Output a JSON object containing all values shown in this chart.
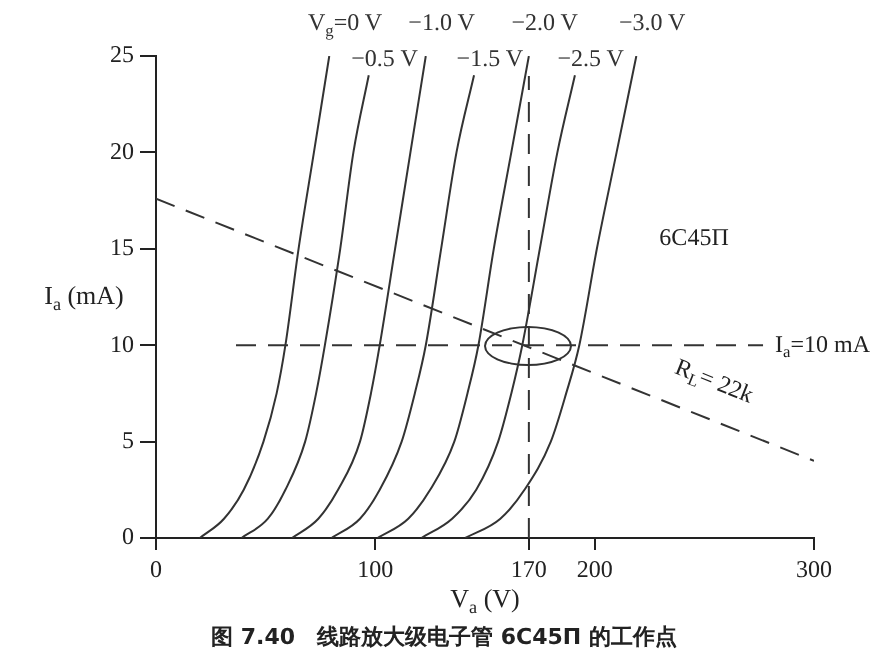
{
  "chart_data": {
    "type": "line",
    "title": "图 7.40　线路放大级电子管 6C45П 的工作点",
    "xlabel": "V$_{a}$ (V)",
    "ylabel": "I$_{a}$ (mA)",
    "xlim": [
      0,
      300
    ],
    "xticks": [
      0,
      100,
      170,
      200,
      300
    ],
    "ylim": [
      0,
      25
    ],
    "yticks": [
      0,
      5,
      10,
      15,
      20,
      25
    ],
    "grid": false,
    "legend": false,
    "marker": "none",
    "series": [
      {
        "name": "V$_{g}$=0 V",
        "color": "#333333",
        "x": [
          20,
          31,
          40,
          49,
          55,
          59,
          65,
          72,
          79
        ],
        "values": [
          0,
          1,
          2.5,
          5,
          7.5,
          10,
          15,
          20,
          25
        ]
      },
      {
        "name": "−0.5 V",
        "color": "#333333",
        "x": [
          39,
          51,
          59,
          68,
          73,
          77,
          84,
          90,
          97
        ],
        "values": [
          0,
          1,
          2.5,
          5,
          7.5,
          10,
          15,
          20,
          24
        ]
      },
      {
        "name": "−1.0 V",
        "color": "#333333",
        "x": [
          62,
          74,
          83,
          93,
          98,
          102,
          109,
          116,
          123
        ],
        "values": [
          0,
          1,
          2.5,
          5,
          7.5,
          10,
          15,
          20,
          25
        ]
      },
      {
        "name": "−1.5 V",
        "color": "#333333",
        "x": [
          80,
          93,
          102,
          112,
          118,
          123,
          130,
          137,
          145
        ],
        "values": [
          0,
          1,
          2.5,
          5,
          7.5,
          10,
          15,
          20,
          24
        ]
      },
      {
        "name": "−2.0 V",
        "color": "#333333",
        "x": [
          101,
          115,
          125,
          136,
          142,
          147,
          154,
          162,
          170
        ],
        "values": [
          0,
          1,
          2.5,
          5,
          7.5,
          10,
          15,
          20,
          25
        ]
      },
      {
        "name": "−2.5 V",
        "color": "#333333",
        "x": [
          121,
          135,
          146,
          156,
          162,
          167,
          175,
          183,
          191
        ],
        "values": [
          0,
          1,
          2.5,
          5,
          7.5,
          10,
          15,
          20,
          24
        ]
      },
      {
        "name": "−3.0 V",
        "color": "#333333",
        "x": [
          141,
          157,
          168,
          180,
          187,
          193,
          201,
          210,
          219
        ],
        "values": [
          0,
          1,
          2.5,
          5,
          7.5,
          10,
          15,
          20,
          25
        ]
      },
      {
        "color": "#333333",
        "line_style": "dashed",
        "x": [
          0,
          300
        ],
        "values": [
          17.6,
          4
        ]
      }
    ],
    "ref_lines": [
      {
        "axis": "x",
        "value": 170,
        "line_style": "dashed",
        "color": "#333333"
      },
      {
        "axis": "y",
        "value": 10,
        "label": "I$_{a}$=10 mA",
        "line_style": "dashed",
        "color": "#333333"
      }
    ],
    "annotations": [
      "6C45П",
      "R$_{L}$= 22k"
    ]
  }
}
